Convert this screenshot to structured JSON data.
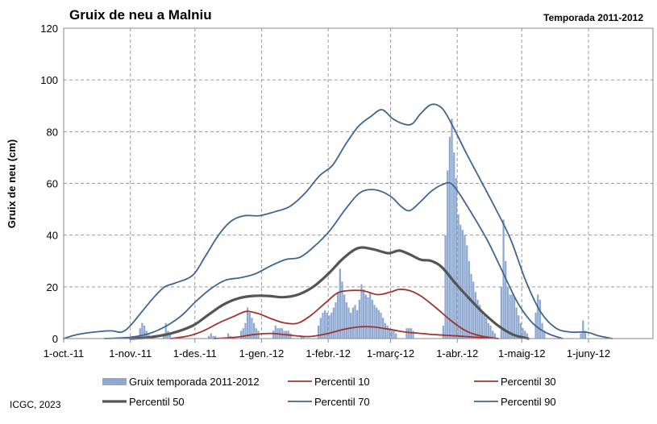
{
  "chart_data": {
    "type": "bar+line",
    "title": "Gruix de neu a Malniu",
    "subtitle": "Temporada 2011-2012",
    "ylabel": "Gruix de neu (cm)",
    "xlabel": "",
    "ylim": [
      0,
      120
    ],
    "yticks": [
      0,
      20,
      40,
      60,
      80,
      100,
      120
    ],
    "xlim": [
      "2011-10-01",
      "2012-06-30"
    ],
    "x_tick_labels": [
      "1-oct.-11",
      "1-nov.-11",
      "1-des.-11",
      "1-gen.-12",
      "1-febr.-12",
      "1-març-12",
      "1-abr.-12",
      "1-maig-12",
      "1-juny-12"
    ],
    "x_tick_dates": [
      "2011-10-01",
      "2011-11-01",
      "2011-12-01",
      "2012-01-01",
      "2012-02-01",
      "2012-03-01",
      "2012-04-01",
      "2012-05-01",
      "2012-06-01"
    ],
    "grid": true,
    "legend_position": "bottom",
    "bars": {
      "name": "Gruix temporada 2011-2012",
      "color": "#8EA8CF",
      "values": [
        [
          "2011-11-05",
          4
        ],
        [
          "2011-11-06",
          6
        ],
        [
          "2011-11-07",
          5
        ],
        [
          "2011-11-08",
          3
        ],
        [
          "2011-11-09",
          1.5
        ],
        [
          "2011-11-16",
          2
        ],
        [
          "2011-11-17",
          6
        ],
        [
          "2011-11-18",
          3
        ],
        [
          "2011-11-19",
          1.5
        ],
        [
          "2011-12-07",
          1
        ],
        [
          "2011-12-08",
          2
        ],
        [
          "2011-12-09",
          1
        ],
        [
          "2011-12-10",
          1
        ],
        [
          "2011-12-16",
          2
        ],
        [
          "2011-12-17",
          1
        ],
        [
          "2011-12-22",
          3
        ],
        [
          "2011-12-23",
          4
        ],
        [
          "2011-12-24",
          6
        ],
        [
          "2011-12-25",
          12
        ],
        [
          "2011-12-26",
          10
        ],
        [
          "2011-12-27",
          8
        ],
        [
          "2011-12-28",
          6
        ],
        [
          "2011-12-29",
          4
        ],
        [
          "2011-12-30",
          3
        ],
        [
          "2012-01-06",
          3
        ],
        [
          "2012-01-07",
          5
        ],
        [
          "2012-01-08",
          4
        ],
        [
          "2012-01-09",
          4
        ],
        [
          "2012-01-10",
          4
        ],
        [
          "2012-01-11",
          3
        ],
        [
          "2012-01-12",
          3
        ],
        [
          "2012-01-13",
          3
        ],
        [
          "2012-01-14",
          2
        ],
        [
          "2012-01-19",
          1
        ],
        [
          "2012-01-20",
          1
        ],
        [
          "2012-01-27",
          5
        ],
        [
          "2012-01-28",
          8
        ],
        [
          "2012-01-29",
          10
        ],
        [
          "2012-01-30",
          11
        ],
        [
          "2012-01-31",
          10
        ],
        [
          "2012-02-01",
          9
        ],
        [
          "2012-02-02",
          10
        ],
        [
          "2012-02-03",
          12
        ],
        [
          "2012-02-04",
          14
        ],
        [
          "2012-02-05",
          18
        ],
        [
          "2012-02-06",
          27
        ],
        [
          "2012-02-07",
          22
        ],
        [
          "2012-02-08",
          17
        ],
        [
          "2012-02-09",
          14
        ],
        [
          "2012-02-10",
          12
        ],
        [
          "2012-02-11",
          10
        ],
        [
          "2012-02-12",
          12
        ],
        [
          "2012-02-13",
          13
        ],
        [
          "2012-02-14",
          11
        ],
        [
          "2012-02-15",
          15
        ],
        [
          "2012-02-16",
          21
        ],
        [
          "2012-02-17",
          19
        ],
        [
          "2012-02-18",
          17
        ],
        [
          "2012-02-19",
          16
        ],
        [
          "2012-02-20",
          18
        ],
        [
          "2012-02-21",
          15
        ],
        [
          "2012-02-22",
          13
        ],
        [
          "2012-02-23",
          12
        ],
        [
          "2012-02-24",
          11
        ],
        [
          "2012-02-25",
          10
        ],
        [
          "2012-02-26",
          8
        ],
        [
          "2012-02-27",
          6
        ],
        [
          "2012-02-28",
          5
        ],
        [
          "2012-02-29",
          4
        ],
        [
          "2012-03-01",
          3
        ],
        [
          "2012-03-02",
          3
        ],
        [
          "2012-03-03",
          2
        ],
        [
          "2012-03-08",
          4
        ],
        [
          "2012-03-09",
          4
        ],
        [
          "2012-03-10",
          4
        ],
        [
          "2012-03-11",
          3
        ],
        [
          "2012-03-25",
          5
        ],
        [
          "2012-03-26",
          40
        ],
        [
          "2012-03-27",
          65
        ],
        [
          "2012-03-28",
          78
        ],
        [
          "2012-03-29",
          85
        ],
        [
          "2012-03-30",
          72
        ],
        [
          "2012-03-31",
          62
        ],
        [
          "2012-04-01",
          48
        ],
        [
          "2012-04-02",
          44
        ],
        [
          "2012-04-03",
          42
        ],
        [
          "2012-04-04",
          40
        ],
        [
          "2012-04-05",
          36
        ],
        [
          "2012-04-06",
          30
        ],
        [
          "2012-04-07",
          25
        ],
        [
          "2012-04-08",
          22
        ],
        [
          "2012-04-09",
          18
        ],
        [
          "2012-04-10",
          15
        ],
        [
          "2012-04-11",
          13
        ],
        [
          "2012-04-12",
          10
        ],
        [
          "2012-04-13",
          9
        ],
        [
          "2012-04-14",
          8
        ],
        [
          "2012-04-15",
          6
        ],
        [
          "2012-04-16",
          5
        ],
        [
          "2012-04-17",
          3
        ],
        [
          "2012-04-18",
          2
        ],
        [
          "2012-04-21",
          20
        ],
        [
          "2012-04-22",
          46
        ],
        [
          "2012-04-23",
          30
        ],
        [
          "2012-04-24",
          20
        ],
        [
          "2012-04-25",
          17
        ],
        [
          "2012-04-26",
          17
        ],
        [
          "2012-04-27",
          16
        ],
        [
          "2012-04-28",
          12
        ],
        [
          "2012-04-29",
          9
        ],
        [
          "2012-04-30",
          6
        ],
        [
          "2012-05-01",
          4
        ],
        [
          "2012-05-02",
          3
        ],
        [
          "2012-05-03",
          2
        ],
        [
          "2012-05-07",
          10
        ],
        [
          "2012-05-08",
          17
        ],
        [
          "2012-05-09",
          15
        ],
        [
          "2012-05-10",
          6
        ],
        [
          "2012-05-11",
          3
        ],
        [
          "2012-05-28",
          2
        ],
        [
          "2012-05-29",
          7
        ],
        [
          "2012-05-30",
          3
        ]
      ]
    },
    "series": [
      {
        "name": "Percentil 10",
        "color": "#A03530",
        "width": 1.8,
        "points": [
          [
            "2011-12-10",
            0
          ],
          [
            "2011-12-20",
            0.5
          ],
          [
            "2011-12-28",
            1.5
          ],
          [
            "2012-01-05",
            2
          ],
          [
            "2012-01-12",
            1.5
          ],
          [
            "2012-01-18",
            1
          ],
          [
            "2012-01-24",
            0.8
          ],
          [
            "2012-02-01",
            2
          ],
          [
            "2012-02-08",
            3.5
          ],
          [
            "2012-02-15",
            4.5
          ],
          [
            "2012-02-22",
            4.5
          ],
          [
            "2012-03-01",
            3.5
          ],
          [
            "2012-03-08",
            2.5
          ],
          [
            "2012-03-15",
            2
          ],
          [
            "2012-03-22",
            1.5
          ],
          [
            "2012-04-01",
            1
          ],
          [
            "2012-04-10",
            0.5
          ],
          [
            "2012-04-20",
            0
          ]
        ]
      },
      {
        "name": "Percentil 30",
        "color": "#A03530",
        "width": 1.8,
        "points": [
          [
            "2011-11-20",
            0
          ],
          [
            "2011-11-28",
            1
          ],
          [
            "2011-12-05",
            3
          ],
          [
            "2011-12-12",
            6
          ],
          [
            "2011-12-19",
            8.5
          ],
          [
            "2011-12-25",
            10.5
          ],
          [
            "2011-12-31",
            9.5
          ],
          [
            "2012-01-06",
            7.5
          ],
          [
            "2012-01-12",
            6
          ],
          [
            "2012-01-18",
            6
          ],
          [
            "2012-01-24",
            9
          ],
          [
            "2012-01-31",
            14
          ],
          [
            "2012-02-05",
            17.5
          ],
          [
            "2012-02-10",
            18.5
          ],
          [
            "2012-02-17",
            18.5
          ],
          [
            "2012-02-24",
            17
          ],
          [
            "2012-03-01",
            18
          ],
          [
            "2012-03-05",
            19
          ],
          [
            "2012-03-10",
            18.5
          ],
          [
            "2012-03-15",
            16.5
          ],
          [
            "2012-03-22",
            12
          ],
          [
            "2012-03-29",
            7
          ],
          [
            "2012-04-05",
            3
          ],
          [
            "2012-04-12",
            1
          ],
          [
            "2012-04-20",
            0
          ]
        ]
      },
      {
        "name": "Percentil 50",
        "color": "#555555",
        "width": 3.2,
        "points": [
          [
            "2011-11-01",
            0
          ],
          [
            "2011-11-10",
            0.5
          ],
          [
            "2011-11-20",
            2
          ],
          [
            "2011-11-30",
            5
          ],
          [
            "2011-12-07",
            9
          ],
          [
            "2011-12-14",
            13
          ],
          [
            "2011-12-21",
            15.5
          ],
          [
            "2011-12-28",
            16.5
          ],
          [
            "2012-01-04",
            16.5
          ],
          [
            "2012-01-11",
            16
          ],
          [
            "2012-01-18",
            17
          ],
          [
            "2012-01-25",
            20
          ],
          [
            "2012-02-01",
            25
          ],
          [
            "2012-02-08",
            31
          ],
          [
            "2012-02-15",
            35
          ],
          [
            "2012-02-22",
            34.5
          ],
          [
            "2012-02-29",
            33
          ],
          [
            "2012-03-05",
            34
          ],
          [
            "2012-03-10",
            32.5
          ],
          [
            "2012-03-15",
            30.5
          ],
          [
            "2012-03-20",
            30
          ],
          [
            "2012-03-25",
            27.5
          ],
          [
            "2012-03-31",
            21.5
          ],
          [
            "2012-04-06",
            16
          ],
          [
            "2012-04-13",
            10
          ],
          [
            "2012-04-20",
            5
          ],
          [
            "2012-04-27",
            1.5
          ],
          [
            "2012-05-04",
            0
          ]
        ]
      },
      {
        "name": "Percentil 70",
        "color": "#3F6592",
        "width": 1.8,
        "points": [
          [
            "2011-10-20",
            0
          ],
          [
            "2011-11-01",
            0.5
          ],
          [
            "2011-11-10",
            2
          ],
          [
            "2011-11-18",
            5
          ],
          [
            "2011-11-25",
            9
          ],
          [
            "2011-12-01",
            14
          ],
          [
            "2011-12-08",
            19
          ],
          [
            "2011-12-15",
            22.5
          ],
          [
            "2011-12-22",
            23.5
          ],
          [
            "2011-12-29",
            25
          ],
          [
            "2012-01-05",
            28
          ],
          [
            "2012-01-12",
            30.5
          ],
          [
            "2012-01-19",
            31.5
          ],
          [
            "2012-01-26",
            36
          ],
          [
            "2012-02-02",
            42
          ],
          [
            "2012-02-09",
            50
          ],
          [
            "2012-02-16",
            56.5
          ],
          [
            "2012-02-23",
            57.5
          ],
          [
            "2012-03-01",
            55
          ],
          [
            "2012-03-06",
            51
          ],
          [
            "2012-03-10",
            49.5
          ],
          [
            "2012-03-15",
            53
          ],
          [
            "2012-03-20",
            57
          ],
          [
            "2012-03-25",
            59.5
          ],
          [
            "2012-03-29",
            60
          ],
          [
            "2012-04-02",
            56
          ],
          [
            "2012-04-08",
            48
          ],
          [
            "2012-04-15",
            38
          ],
          [
            "2012-04-22",
            26
          ],
          [
            "2012-04-29",
            14
          ],
          [
            "2012-05-06",
            6
          ],
          [
            "2012-05-13",
            2
          ],
          [
            "2012-05-20",
            0
          ]
        ]
      },
      {
        "name": "Percentil 90",
        "color": "#3F6592",
        "width": 1.8,
        "points": [
          [
            "2011-10-01",
            0
          ],
          [
            "2011-10-07",
            1.5
          ],
          [
            "2011-10-15",
            2.5
          ],
          [
            "2011-10-23",
            3
          ],
          [
            "2011-10-28",
            2.5
          ],
          [
            "2011-11-01",
            5
          ],
          [
            "2011-11-06",
            10
          ],
          [
            "2011-11-12",
            16
          ],
          [
            "2011-11-17",
            20
          ],
          [
            "2011-11-22",
            21.5
          ],
          [
            "2011-11-30",
            24.5
          ],
          [
            "2011-12-06",
            32
          ],
          [
            "2011-12-12",
            40
          ],
          [
            "2011-12-18",
            45.5
          ],
          [
            "2011-12-24",
            47.5
          ],
          [
            "2011-12-31",
            47.5
          ],
          [
            "2012-01-07",
            49
          ],
          [
            "2012-01-14",
            51
          ],
          [
            "2012-01-21",
            56
          ],
          [
            "2012-01-28",
            63
          ],
          [
            "2012-02-03",
            67
          ],
          [
            "2012-02-09",
            75
          ],
          [
            "2012-02-15",
            82
          ],
          [
            "2012-02-21",
            86
          ],
          [
            "2012-02-26",
            88.5
          ],
          [
            "2012-03-02",
            85
          ],
          [
            "2012-03-07",
            83
          ],
          [
            "2012-03-11",
            83
          ],
          [
            "2012-03-15",
            87
          ],
          [
            "2012-03-20",
            90.5
          ],
          [
            "2012-03-25",
            89
          ],
          [
            "2012-03-30",
            82
          ],
          [
            "2012-04-05",
            72
          ],
          [
            "2012-04-12",
            61
          ],
          [
            "2012-04-19",
            50
          ],
          [
            "2012-04-26",
            38
          ],
          [
            "2012-05-03",
            22
          ],
          [
            "2012-05-10",
            10
          ],
          [
            "2012-05-17",
            4
          ],
          [
            "2012-05-24",
            2.5
          ],
          [
            "2012-05-31",
            2.5
          ],
          [
            "2012-06-06",
            1
          ],
          [
            "2012-06-12",
            0
          ]
        ]
      }
    ]
  },
  "legend": [
    {
      "label": "Gruix temporada 2011-2012",
      "kind": "bar",
      "color": "#8EA8CF"
    },
    {
      "label": "Percentil 10",
      "kind": "line",
      "color": "#A03530"
    },
    {
      "label": "Percentil 30",
      "kind": "line",
      "color": "#A03530"
    },
    {
      "label": "Percentil 50",
      "kind": "line",
      "color": "#555555"
    },
    {
      "label": "Percentil 70",
      "kind": "line",
      "color": "#3F6592"
    },
    {
      "label": "Percentil 90",
      "kind": "line",
      "color": "#3F6592"
    }
  ],
  "credit": "ICGC, 2023"
}
